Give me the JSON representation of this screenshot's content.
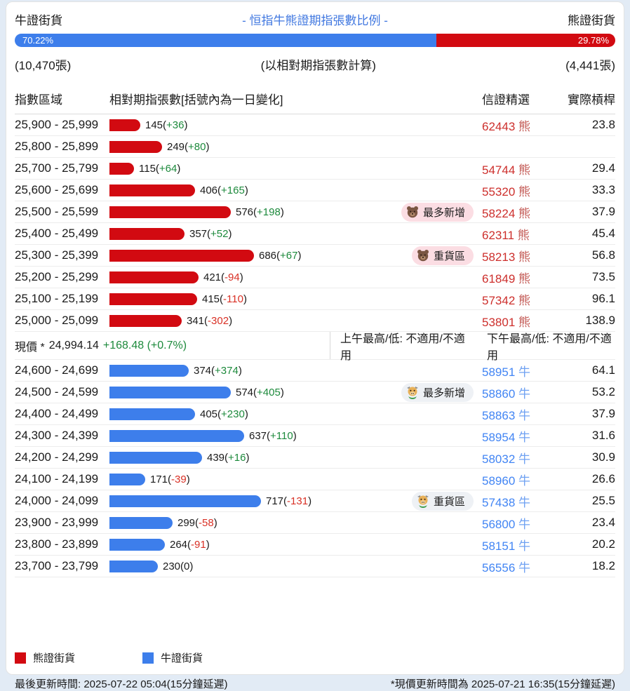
{
  "header": {
    "bull_side_label": "牛證街貨",
    "title": "- 恒指牛熊證期指張數比例 -",
    "title_color": "#4178e0",
    "bear_side_label": "熊證街貨",
    "bull_pct_label": "70.22%",
    "bear_pct_label": "29.78%",
    "bull_pct_value": 70.22,
    "bull_count": "(10,470張)",
    "calc_note": "(以相對期指張數計算)",
    "bear_count": "(4,441張)",
    "bull_color": "#3d7eeb",
    "bear_color": "#d20a11"
  },
  "table_headers": {
    "range": "指數區域",
    "amount": "相對期指張數[括號內為一日變化]",
    "featured": "信證精選",
    "leverage": "實際槓桿"
  },
  "bear_rows": [
    {
      "range": "25,900 - 25,999",
      "value": 145,
      "change": 36,
      "badge": null,
      "code": "62443",
      "suffix": "熊",
      "leverage": "23.8"
    },
    {
      "range": "25,800 - 25,899",
      "value": 249,
      "change": 80,
      "badge": null,
      "code": "",
      "suffix": "",
      "leverage": ""
    },
    {
      "range": "25,700 - 25,799",
      "value": 115,
      "change": 64,
      "badge": null,
      "code": "54744",
      "suffix": "熊",
      "leverage": "29.4"
    },
    {
      "range": "25,600 - 25,699",
      "value": 406,
      "change": 165,
      "badge": null,
      "code": "55320",
      "suffix": "熊",
      "leverage": "33.3"
    },
    {
      "range": "25,500 - 25,599",
      "value": 576,
      "change": 198,
      "badge": {
        "icon": "bear",
        "label": "最多新增"
      },
      "code": "58224",
      "suffix": "熊",
      "leverage": "37.9"
    },
    {
      "range": "25,400 - 25,499",
      "value": 357,
      "change": 52,
      "badge": null,
      "code": "62311",
      "suffix": "熊",
      "leverage": "45.4"
    },
    {
      "range": "25,300 - 25,399",
      "value": 686,
      "change": 67,
      "badge": {
        "icon": "bear",
        "label": "重貨區"
      },
      "code": "58213",
      "suffix": "熊",
      "leverage": "56.8"
    },
    {
      "range": "25,200 - 25,299",
      "value": 421,
      "change": -94,
      "badge": null,
      "code": "61849",
      "suffix": "熊",
      "leverage": "73.5"
    },
    {
      "range": "25,100 - 25,199",
      "value": 415,
      "change": -110,
      "badge": null,
      "code": "57342",
      "suffix": "熊",
      "leverage": "96.1"
    },
    {
      "range": "25,000 - 25,099",
      "value": 341,
      "change": -302,
      "badge": null,
      "code": "53801",
      "suffix": "熊",
      "leverage": "138.9"
    }
  ],
  "current_price": {
    "label": "現價 *",
    "value": "24,994.14",
    "change": "+168.48 (+0.7%)",
    "am_high_low": "上午最高/低: 不適用/不適用",
    "pm_high_low": "下午最高/低: 不適用/不適用"
  },
  "bull_rows": [
    {
      "range": "24,600 - 24,699",
      "value": 374,
      "change": 374,
      "badge": null,
      "code": "58951",
      "suffix": "牛",
      "leverage": "64.1"
    },
    {
      "range": "24,500 - 24,599",
      "value": 574,
      "change": 405,
      "badge": {
        "icon": "bull",
        "label": "最多新增"
      },
      "code": "58860",
      "suffix": "牛",
      "leverage": "53.2"
    },
    {
      "range": "24,400 - 24,499",
      "value": 405,
      "change": 230,
      "badge": null,
      "code": "58863",
      "suffix": "牛",
      "leverage": "37.9"
    },
    {
      "range": "24,300 - 24,399",
      "value": 637,
      "change": 110,
      "badge": null,
      "code": "58954",
      "suffix": "牛",
      "leverage": "31.6"
    },
    {
      "range": "24,200 - 24,299",
      "value": 439,
      "change": 16,
      "badge": null,
      "code": "58032",
      "suffix": "牛",
      "leverage": "30.9"
    },
    {
      "range": "24,100 - 24,199",
      "value": 171,
      "change": -39,
      "badge": null,
      "code": "58960",
      "suffix": "牛",
      "leverage": "26.6"
    },
    {
      "range": "24,000 - 24,099",
      "value": 717,
      "change": -131,
      "badge": {
        "icon": "bull",
        "label": "重貨區"
      },
      "code": "57438",
      "suffix": "牛",
      "leverage": "25.5"
    },
    {
      "range": "23,900 - 23,999",
      "value": 299,
      "change": -58,
      "badge": null,
      "code": "56800",
      "suffix": "牛",
      "leverage": "23.4"
    },
    {
      "range": "23,800 - 23,899",
      "value": 264,
      "change": -91,
      "badge": null,
      "code": "58151",
      "suffix": "牛",
      "leverage": "20.2"
    },
    {
      "range": "23,700 - 23,799",
      "value": 230,
      "change": 0,
      "badge": null,
      "code": "56556",
      "suffix": "牛",
      "leverage": "18.2"
    }
  ],
  "legend": {
    "bear_label": "熊證街貨",
    "bull_label": "牛證街貨"
  },
  "footer": {
    "last_update": "最後更新時間: 2025-07-22 05:04(15分鐘延遲)",
    "price_update": "*現價更新時間為 2025-07-21 16:35(15分鐘延遲)"
  },
  "chart_data": {
    "type": "bar",
    "orientation": "horizontal",
    "title": "- 恒指牛熊證期指張數比例 -",
    "subtitle": "(以相對期指張數計算)",
    "xlabel": "相對期指張數[括號內為一日變化]",
    "ylabel": "指數區域",
    "xlim": [
      0,
      750
    ],
    "grid": false,
    "legend_position": "bottom",
    "ratio_bar": {
      "bull_pct": 70.22,
      "bear_pct": 29.78,
      "bull_contracts": 10470,
      "bear_contracts": 4441
    },
    "current_price": {
      "value": 24994.14,
      "change": 168.48,
      "change_pct": 0.7
    },
    "series": [
      {
        "name": "熊證街貨",
        "color": "#d20a11",
        "categories": [
          "25,900 - 25,999",
          "25,800 - 25,899",
          "25,700 - 25,799",
          "25,600 - 25,699",
          "25,500 - 25,599",
          "25,400 - 25,499",
          "25,300 - 25,399",
          "25,200 - 25,299",
          "25,100 - 25,199",
          "25,000 - 25,099"
        ],
        "values": [
          145,
          249,
          115,
          406,
          576,
          357,
          686,
          421,
          415,
          341
        ],
        "one_day_change": [
          36,
          80,
          64,
          165,
          198,
          52,
          67,
          -94,
          -110,
          -302
        ]
      },
      {
        "name": "牛證街貨",
        "color": "#3d7eeb",
        "categories": [
          "24,600 - 24,699",
          "24,500 - 24,599",
          "24,400 - 24,499",
          "24,300 - 24,399",
          "24,200 - 24,299",
          "24,100 - 24,199",
          "24,000 - 24,099",
          "23,900 - 23,999",
          "23,800 - 23,899",
          "23,700 - 23,799"
        ],
        "values": [
          374,
          574,
          405,
          637,
          439,
          171,
          717,
          299,
          264,
          230
        ],
        "one_day_change": [
          374,
          405,
          230,
          110,
          16,
          -39,
          -131,
          -58,
          -91,
          0
        ]
      }
    ]
  }
}
